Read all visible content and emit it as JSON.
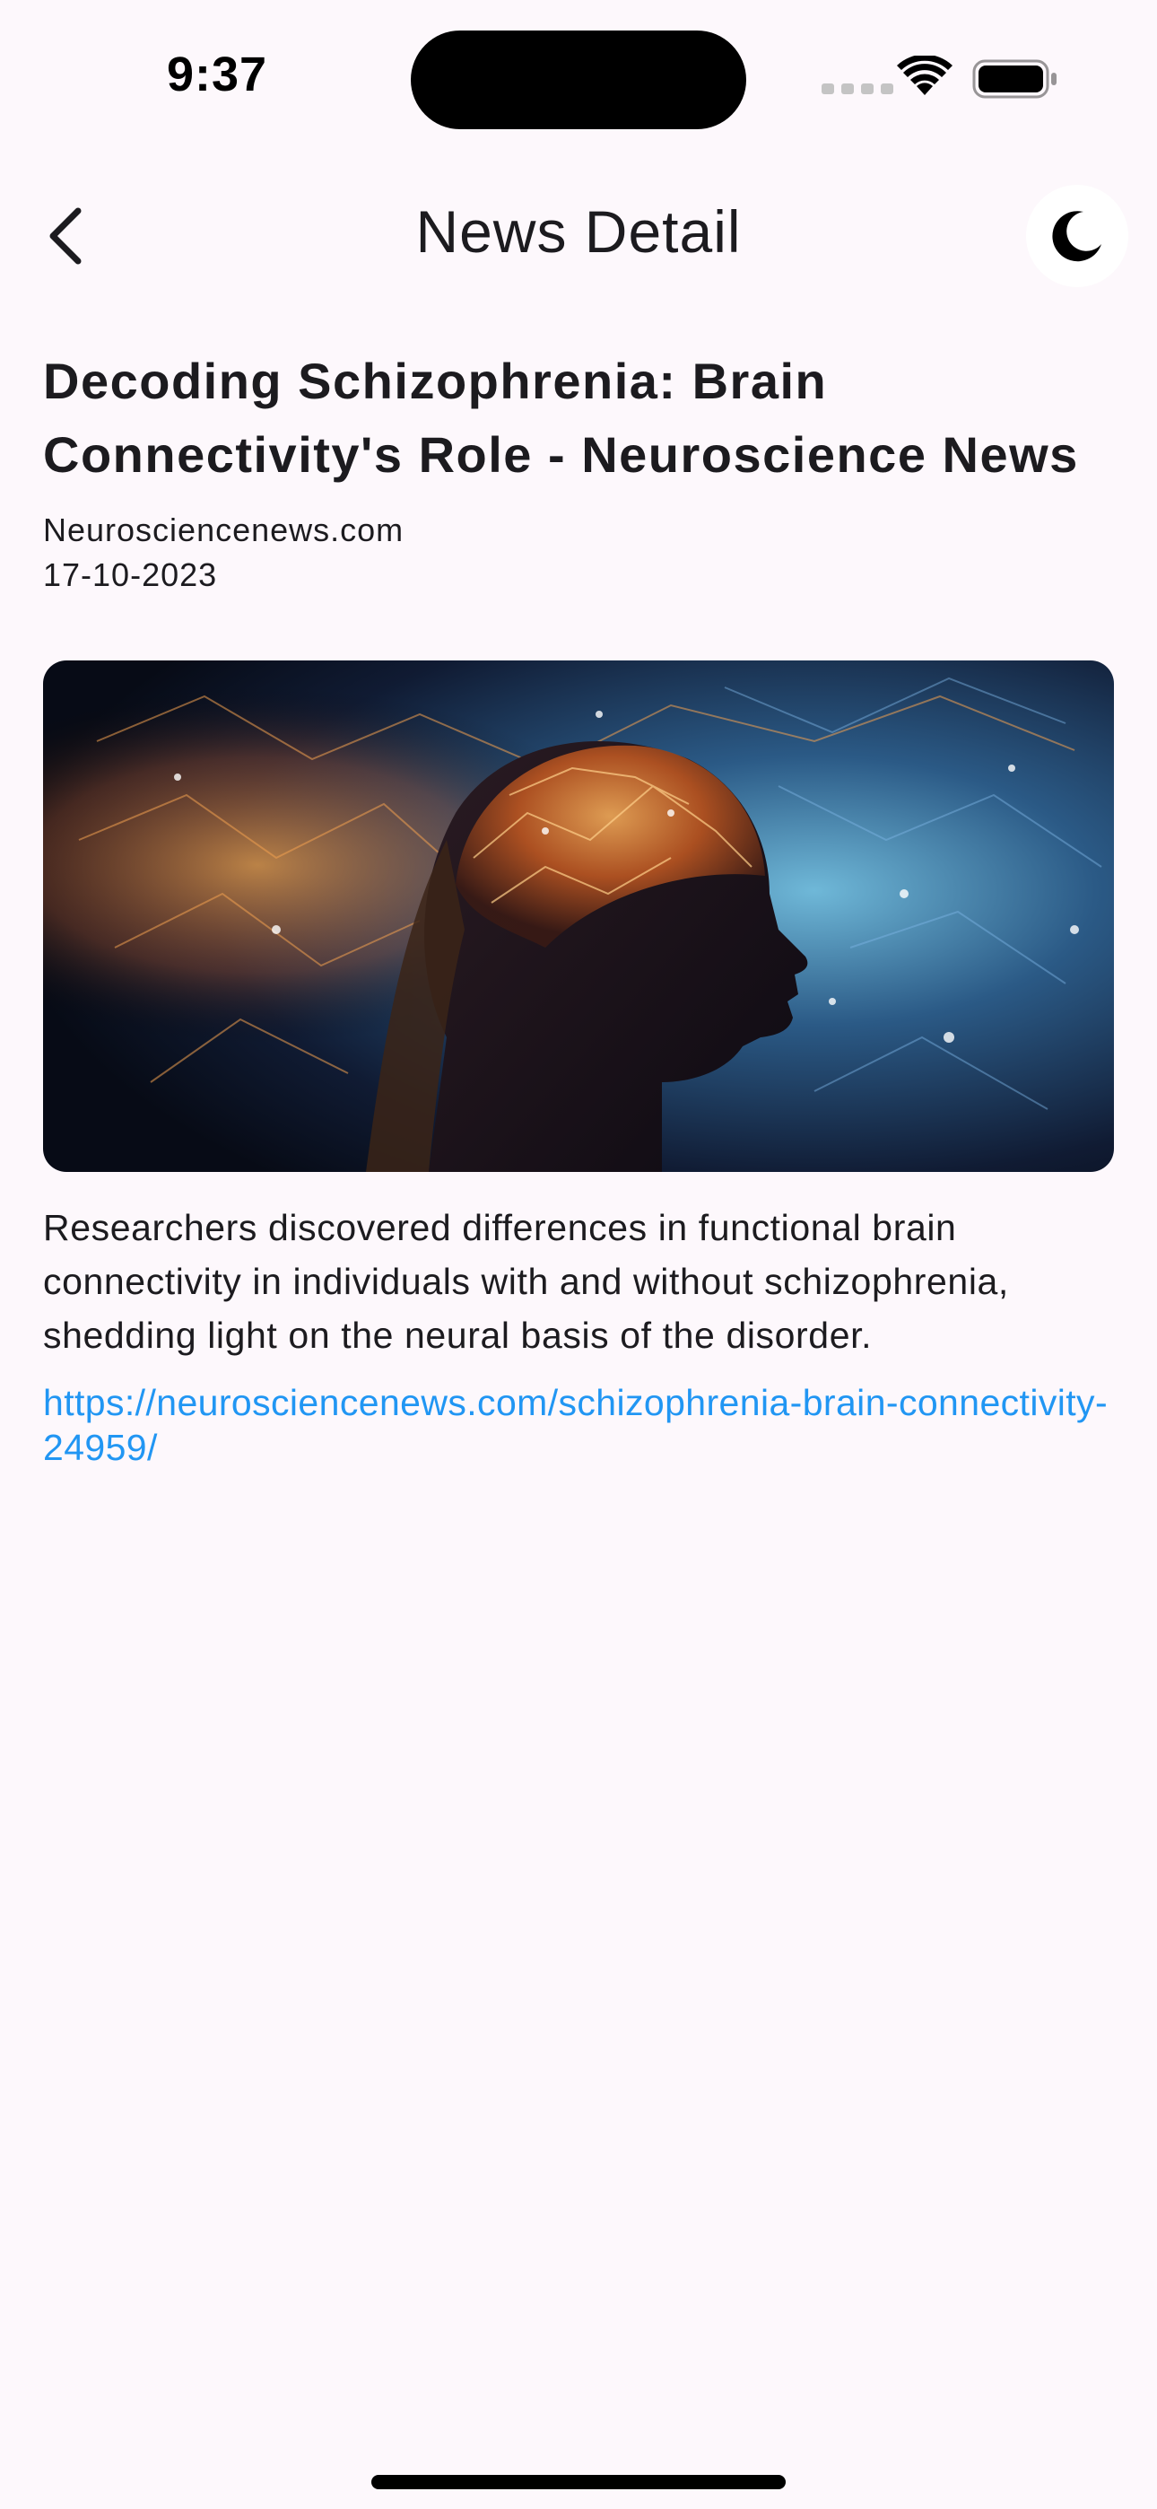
{
  "status_bar": {
    "time": "9:37",
    "icons": [
      "cellular-signal-icon",
      "wifi-icon",
      "battery-icon"
    ]
  },
  "app_bar": {
    "title": "News Detail",
    "back_icon": "chevron-left-icon",
    "theme_toggle_icon": "moon-icon"
  },
  "article": {
    "title": "Decoding Schizophrenia: Brain Connectivity's Role - Neuroscience News",
    "source": "Neurosciencenews.com",
    "date": "17-10-2023",
    "image_alt": "Woman in profile with glowing neural network around her head",
    "description": "Researchers discovered differences in functional brain connectivity in individuals with and without schizophrenia, shedding light on the neural basis of the disorder.",
    "url": "https://neurosciencenews.com/schizophrenia-brain-connectivity-24959/"
  },
  "colors": {
    "background": "#fdf8fc",
    "link": "#2196f3",
    "text": "#1c1b1f"
  }
}
